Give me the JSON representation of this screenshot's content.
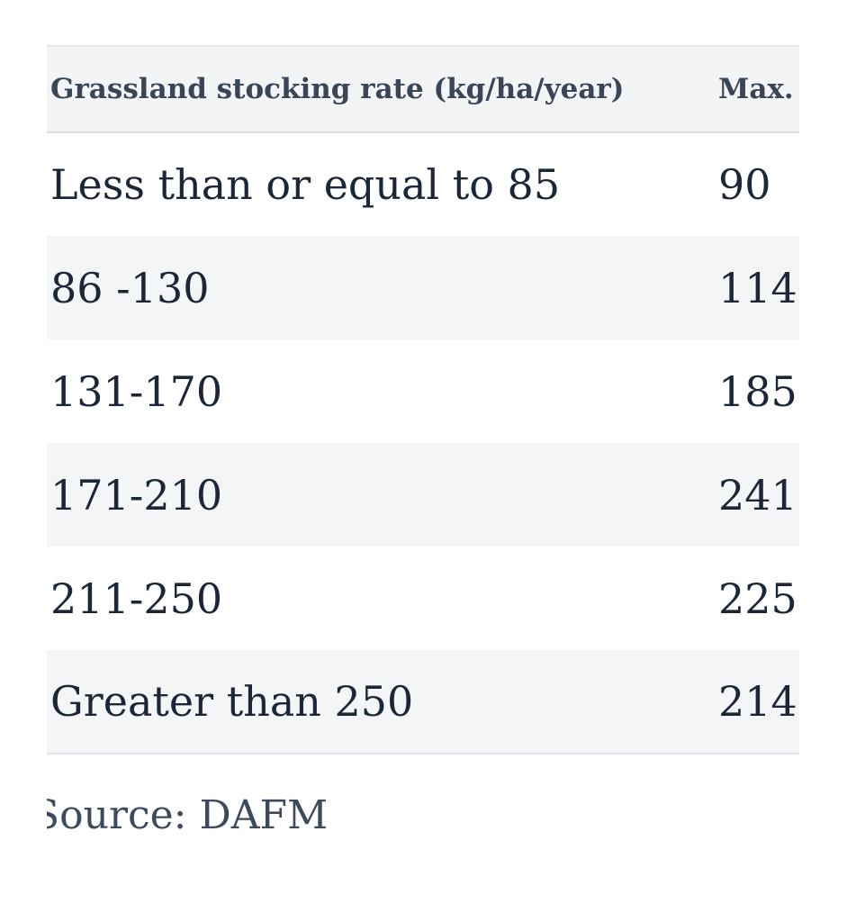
{
  "table": {
    "headers": [
      "Grassland stocking rate (kg/ha/year)",
      "Max."
    ],
    "rows": [
      [
        "Less than or equal to 85",
        "90"
      ],
      [
        "86 -130",
        "114"
      ],
      [
        "131-170",
        "185"
      ],
      [
        "171-210",
        "241"
      ],
      [
        "211-250",
        "225"
      ],
      [
        "Greater than 250",
        "214"
      ]
    ]
  },
  "source": "Source: DAFM"
}
